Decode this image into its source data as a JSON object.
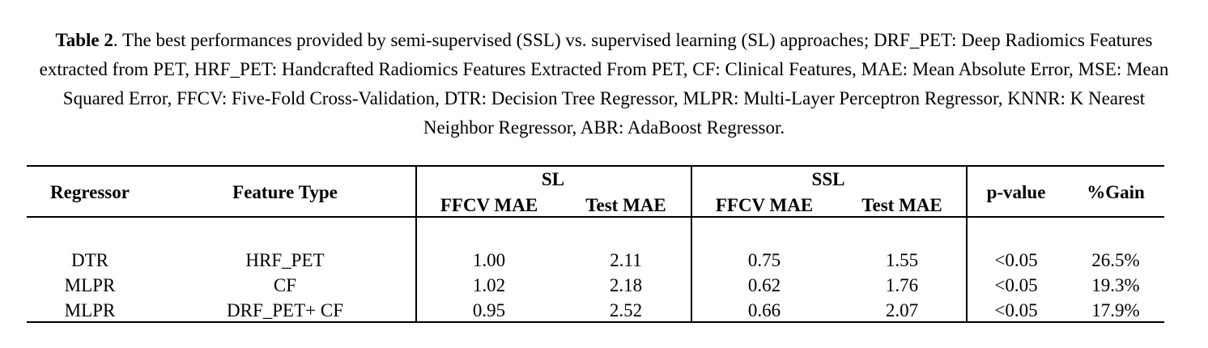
{
  "caption": {
    "label": "Table 2",
    "text": ". The best performances provided by semi-supervised (SSL) vs. supervised learning (SL) approaches; DRF_PET: Deep Radiomics Features extracted from PET, HRF_PET: Handcrafted Radiomics Features Extracted From PET, CF: Clinical Features, MAE: Mean Absolute Error, MSE: Mean Squared Error, FFCV: Five-Fold Cross-Validation, DTR: Decision Tree Regressor, MLPR: Multi-Layer Perceptron Regressor, KNNR: K Nearest Neighbor Regressor, ABR: AdaBoost Regressor."
  },
  "table": {
    "header": {
      "regressor": "Regressor",
      "feature_type": "Feature Type",
      "sl": "SL",
      "ssl": "SSL",
      "sl_ffcv": "FFCV MAE",
      "sl_test": "Test MAE",
      "ssl_ffcv": "FFCV MAE",
      "ssl_test": "Test MAE",
      "p_value": "p-value",
      "gain": "%Gain"
    },
    "rows": [
      [
        "DTR",
        "HRF_PET",
        "1.00",
        "2.11",
        "0.75",
        "1.55",
        "<0.05",
        "26.5%"
      ],
      [
        "MLPR",
        "CF",
        "1.02",
        "2.18",
        "0.62",
        "1.76",
        "<0.05",
        "19.3%"
      ],
      [
        "MLPR",
        "DRF_PET+ CF",
        "0.95",
        "2.52",
        "0.66",
        "2.07",
        "<0.05",
        "17.9%"
      ]
    ]
  }
}
